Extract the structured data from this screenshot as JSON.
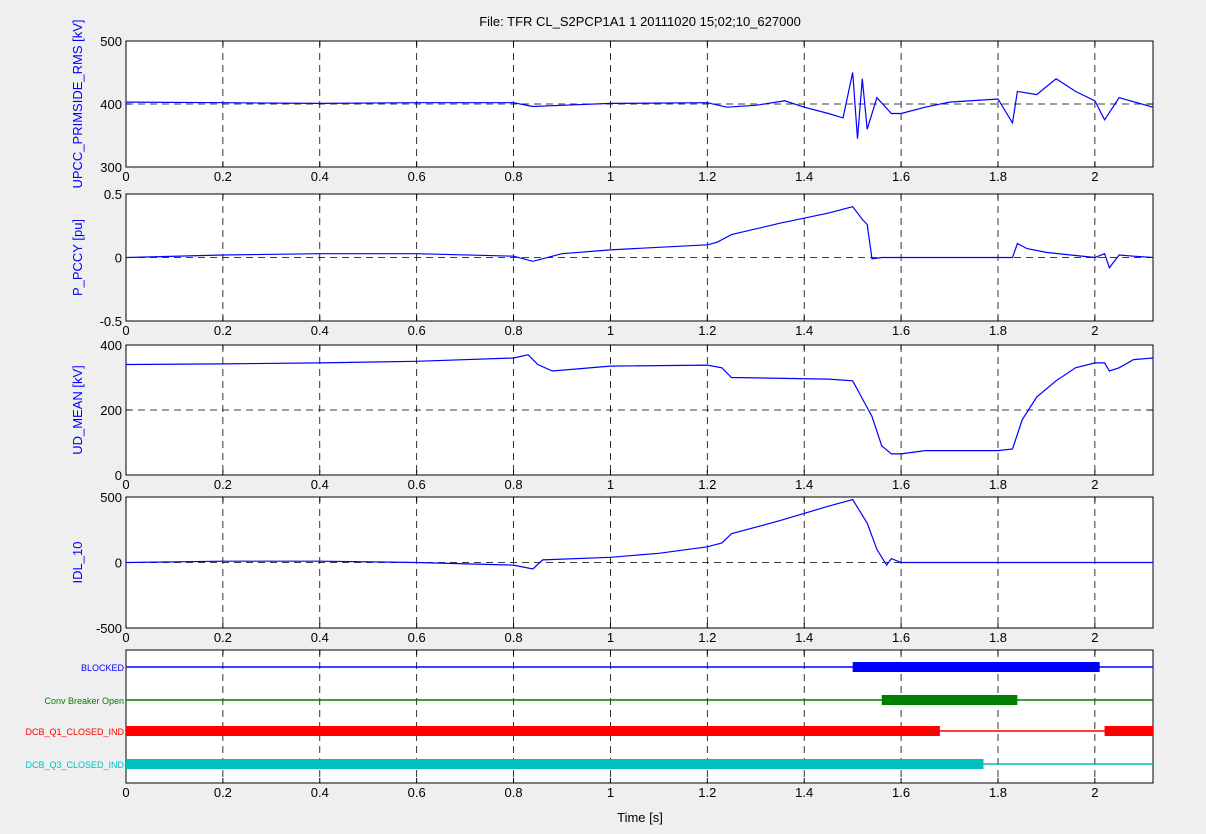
{
  "chart_data": {
    "type": "line",
    "title": "File: TFR CL_S2PCP1A1 1 20111020 15;02;10_627000",
    "xlabel": "Time [s]",
    "xlim": [
      0,
      2.12
    ],
    "x_ticks": [
      "0",
      "0.2",
      "0.4",
      "0.6",
      "0.8",
      "1",
      "1.2",
      "1.4",
      "1.6",
      "1.8",
      "2"
    ],
    "grid": true,
    "line_color": "#0000ff",
    "panels": [
      {
        "ylabel": "UPCC_PRIMSIDE_RMS [kV]",
        "ylim": [
          300,
          500
        ],
        "y_ticks": [
          "300",
          "400",
          "500"
        ],
        "series": [
          {
            "x": [
              0,
              0.2,
              0.4,
              0.6,
              0.8,
              0.84,
              0.9,
              1.0,
              1.2,
              1.24,
              1.3,
              1.36,
              1.4,
              1.45,
              1.48,
              1.5,
              1.51,
              1.52,
              1.53,
              1.55,
              1.58,
              1.6,
              1.65,
              1.7,
              1.8,
              1.83,
              1.84,
              1.88,
              1.92,
              1.96,
              2.0,
              2.02,
              2.05,
              2.12
            ],
            "y": [
              403,
              402,
              401,
              402,
              402,
              396,
              398,
              401,
              402,
              395,
              398,
              405,
              395,
              385,
              378,
              450,
              345,
              440,
              360,
              410,
              385,
              385,
              395,
              403,
              408,
              370,
              420,
              415,
              440,
              420,
              405,
              375,
              410,
              395
            ]
          }
        ]
      },
      {
        "ylabel": "P_PCCY [pu]",
        "ylim": [
          -0.5,
          0.5
        ],
        "y_ticks": [
          "-0.5",
          "0",
          "0.5"
        ],
        "series": [
          {
            "x": [
              0,
              0.2,
              0.4,
              0.6,
              0.8,
              0.84,
              0.9,
              1.0,
              1.1,
              1.2,
              1.22,
              1.25,
              1.35,
              1.45,
              1.5,
              1.52,
              1.53,
              1.54,
              1.56,
              1.6,
              1.7,
              1.8,
              1.83,
              1.84,
              1.86,
              1.9,
              1.95,
              2.0,
              2.02,
              2.03,
              2.05,
              2.08,
              2.12
            ],
            "y": [
              0,
              0.02,
              0.03,
              0.03,
              0.01,
              -0.03,
              0.03,
              0.06,
              0.08,
              0.1,
              0.12,
              0.18,
              0.27,
              0.35,
              0.4,
              0.3,
              0.26,
              -0.01,
              0.0,
              0.0,
              0.0,
              0.0,
              0.0,
              0.11,
              0.07,
              0.04,
              0.02,
              0.0,
              0.03,
              -0.08,
              0.02,
              0.01,
              0.0
            ]
          }
        ]
      },
      {
        "ylabel": "UD_MEAN [kV]",
        "ylim": [
          0,
          400
        ],
        "y_ticks": [
          "0",
          "200",
          "400"
        ],
        "series": [
          {
            "x": [
              0,
              0.2,
              0.4,
              0.6,
              0.8,
              0.83,
              0.85,
              0.88,
              1.0,
              1.2,
              1.23,
              1.25,
              1.45,
              1.5,
              1.52,
              1.54,
              1.56,
              1.58,
              1.6,
              1.65,
              1.7,
              1.8,
              1.83,
              1.85,
              1.88,
              1.92,
              1.96,
              2.0,
              2.02,
              2.03,
              2.05,
              2.08,
              2.12
            ],
            "y": [
              340,
              342,
              345,
              350,
              360,
              370,
              340,
              320,
              335,
              338,
              330,
              300,
              295,
              290,
              235,
              180,
              90,
              65,
              65,
              75,
              75,
              75,
              80,
              170,
              240,
              290,
              330,
              345,
              345,
              320,
              330,
              355,
              360
            ]
          }
        ]
      },
      {
        "ylabel": "IDL_10",
        "ylim": [
          -500,
          500
        ],
        "y_ticks": [
          "-500",
          "0",
          "500"
        ],
        "series": [
          {
            "x": [
              0,
              0.2,
              0.4,
              0.6,
              0.8,
              0.84,
              0.86,
              1.0,
              1.1,
              1.2,
              1.23,
              1.25,
              1.35,
              1.45,
              1.5,
              1.53,
              1.55,
              1.57,
              1.58,
              1.6,
              1.7,
              1.8,
              2.0,
              2.12
            ],
            "y": [
              0,
              10,
              10,
              0,
              -20,
              -50,
              20,
              40,
              70,
              120,
              150,
              220,
              320,
              430,
              480,
              300,
              100,
              -20,
              30,
              0,
              0,
              0,
              0,
              0
            ]
          }
        ]
      }
    ],
    "digital": {
      "series": [
        {
          "name": "BLOCKED",
          "color": "#0000ff",
          "on": [
            [
              1.5,
              2.01
            ]
          ]
        },
        {
          "name": "Conv Breaker Open",
          "color": "#007f00",
          "on": [
            [
              1.56,
              1.84
            ]
          ]
        },
        {
          "name": "DCB_Q1_CLOSED_IND",
          "color": "#ff0000",
          "on": [
            [
              0,
              1.68
            ],
            [
              2.02,
              2.12
            ]
          ]
        },
        {
          "name": "DCB_Q3_CLOSED_IND",
          "color": "#00bfbf",
          "on": [
            [
              0,
              1.77
            ]
          ]
        }
      ]
    }
  }
}
